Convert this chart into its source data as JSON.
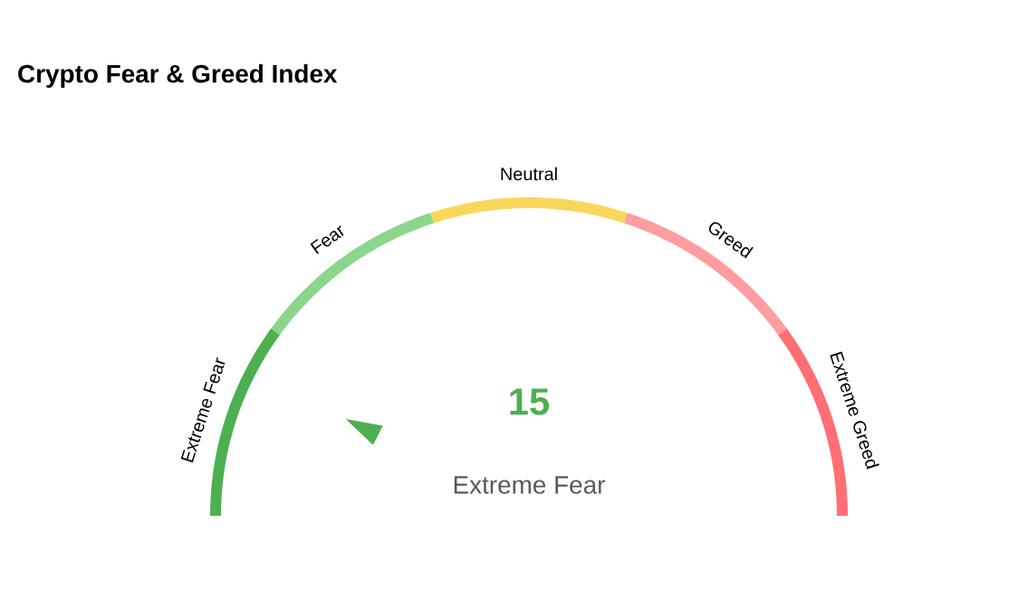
{
  "chart_data": {
    "type": "donut",
    "title": "Crypto Fear & Greed Index",
    "categories": [
      "Extreme Fear",
      "Fear",
      "Neutral",
      "Greed",
      "Extreme Greed"
    ],
    "values": [
      20,
      20,
      20,
      20,
      20
    ],
    "colors": [
      "#4cb050",
      "#8bd68b",
      "#fad75a",
      "#ff9da0",
      "#ff6f73"
    ],
    "annotations": [
      "15",
      "Extreme Fear"
    ]
  }
}
